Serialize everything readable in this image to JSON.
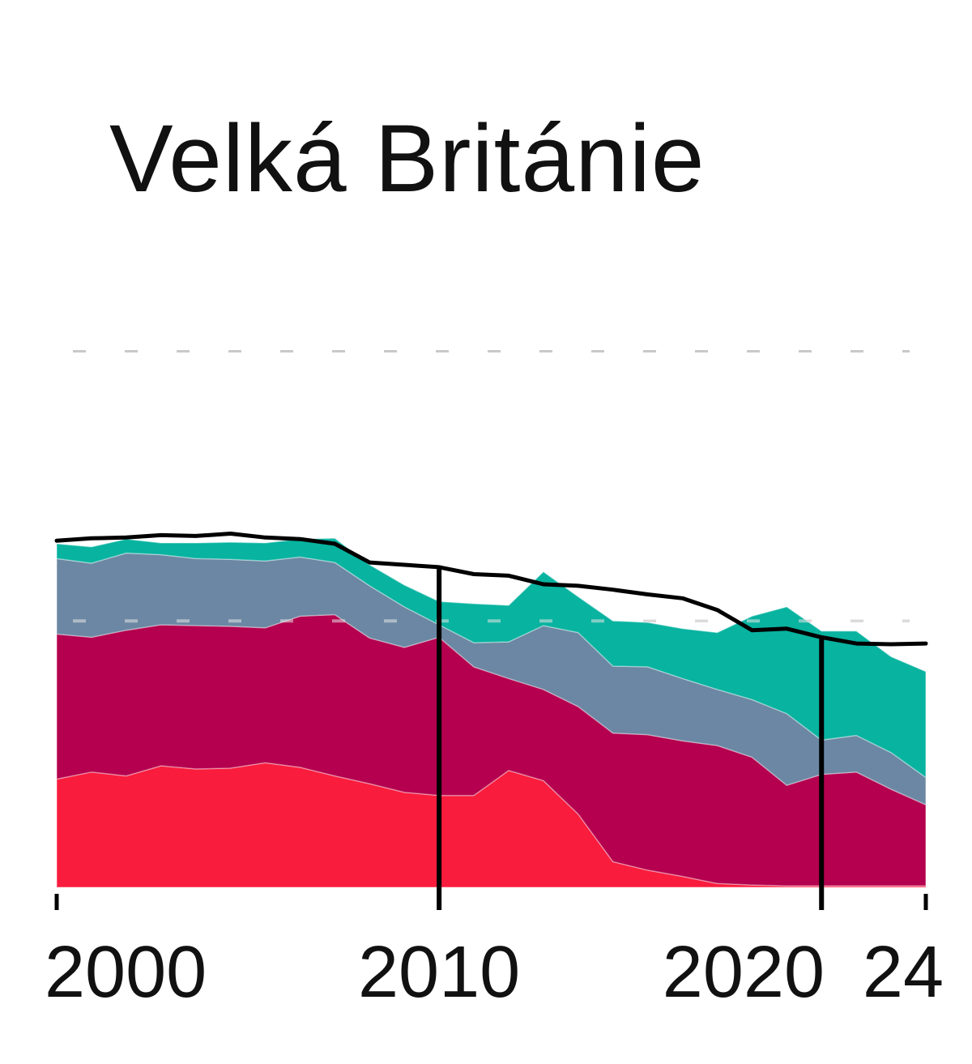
{
  "chart_data": {
    "type": "area",
    "title": "Velká Británie",
    "stacked": true,
    "x": [
      1999,
      2000,
      2001,
      2002,
      2003,
      2004,
      2005,
      2006,
      2007,
      2008,
      2009,
      2010,
      2011,
      2012,
      2013,
      2014,
      2015,
      2016,
      2017,
      2018,
      2019,
      2020,
      2021,
      2022,
      2023,
      2024
    ],
    "series": [
      {
        "color": "#fa1c3d",
        "values": [
          139,
          148,
          143,
          156,
          152,
          153,
          160,
          154,
          143,
          133,
          122,
          118,
          118,
          150,
          137,
          94,
          33,
          22,
          14,
          5,
          3,
          2,
          2,
          2,
          2,
          2
        ]
      },
      {
        "color": "#b4004e",
        "values": [
          186,
          173,
          187,
          181,
          184,
          182,
          173,
          194,
          207,
          187,
          186,
          203,
          165,
          118,
          117,
          138,
          165,
          174,
          174,
          177,
          164,
          129,
          143,
          146,
          124,
          104
        ]
      },
      {
        "color": "#6b87a3",
        "values": [
          97,
          95,
          99,
          90,
          86,
          86,
          86,
          76,
          67,
          67,
          52,
          16,
          31,
          47,
          82,
          95,
          86,
          87,
          80,
          72,
          74,
          92,
          44,
          47,
          47,
          35
        ]
      },
      {
        "color": "#08b3a0",
        "values": [
          19,
          21,
          18,
          15,
          20,
          22,
          23,
          23,
          31,
          27,
          28,
          30,
          50,
          47,
          69,
          46,
          58,
          57,
          64,
          73,
          107,
          137,
          140,
          134,
          123,
          136
        ]
      }
    ],
    "total_line": {
      "color": "#000000",
      "values": [
        445,
        448,
        449,
        452,
        451,
        454,
        449,
        447,
        441,
        417,
        414,
        411,
        402,
        400,
        389,
        387,
        382,
        376,
        371,
        356,
        330,
        332,
        321,
        313,
        312,
        313
      ]
    },
    "ylim": [
      0,
      700
    ],
    "dashed_gridlines": [
      342,
      688
    ],
    "vertical_markers": [
      2010,
      2021
    ],
    "x_ticks": [
      {
        "year": 1999,
        "label": "2000"
      },
      {
        "year": 2010,
        "label": "2010"
      },
      {
        "year": 2021,
        "label": "2020"
      },
      {
        "year": 2024,
        "label": "24"
      }
    ]
  }
}
